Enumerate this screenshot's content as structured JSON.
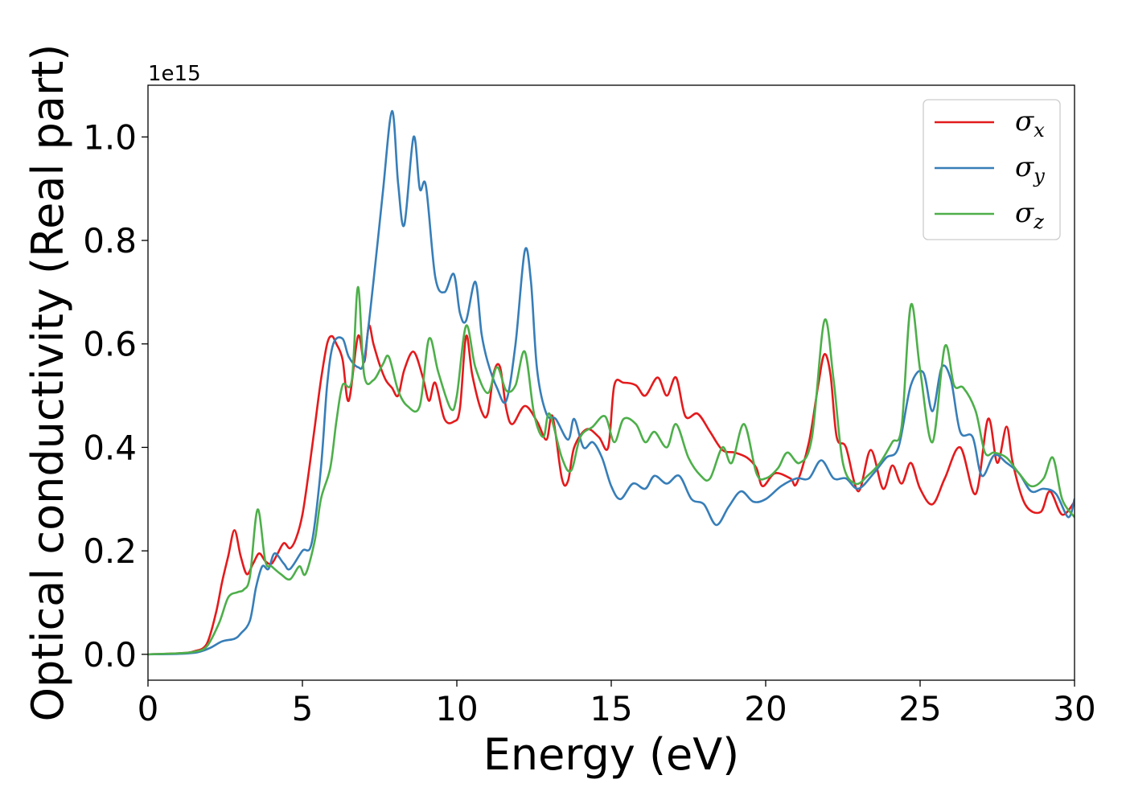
{
  "chart_data": {
    "type": "line",
    "xlabel": "Energy (eV)",
    "ylabel": "Optical conductivity (Real part)",
    "y_offset_text": "1e15",
    "xlim": [
      0,
      30
    ],
    "ylim": [
      -0.05,
      1.1
    ],
    "y_scale_factor": 1000000000000000.0,
    "xticks": [
      0,
      5,
      10,
      15,
      20,
      25,
      30
    ],
    "yticks": [
      0.0,
      0.2,
      0.4,
      0.6,
      0.8,
      1.0
    ],
    "xtick_labels": [
      "0",
      "5",
      "10",
      "15",
      "20",
      "25",
      "30"
    ],
    "ytick_labels": [
      "0.0",
      "0.2",
      "0.4",
      "0.6",
      "0.8",
      "1.0"
    ],
    "grid": false,
    "legend": "top-right",
    "series": [
      {
        "name": "σ_x",
        "symbol": "σ",
        "subscript": "x",
        "color": "#e41a1c",
        "points": [
          [
            0,
            0
          ],
          [
            1.0,
            0.002
          ],
          [
            1.5,
            0.006
          ],
          [
            1.9,
            0.02
          ],
          [
            2.2,
            0.08
          ],
          [
            2.4,
            0.14
          ],
          [
            2.6,
            0.19
          ],
          [
            2.8,
            0.24
          ],
          [
            3.0,
            0.19
          ],
          [
            3.2,
            0.155
          ],
          [
            3.4,
            0.175
          ],
          [
            3.6,
            0.195
          ],
          [
            3.8,
            0.18
          ],
          [
            4.0,
            0.175
          ],
          [
            4.2,
            0.195
          ],
          [
            4.4,
            0.215
          ],
          [
            4.6,
            0.205
          ],
          [
            4.8,
            0.225
          ],
          [
            5.0,
            0.27
          ],
          [
            5.2,
            0.35
          ],
          [
            5.4,
            0.44
          ],
          [
            5.6,
            0.53
          ],
          [
            5.8,
            0.6
          ],
          [
            5.95,
            0.615
          ],
          [
            6.1,
            0.6
          ],
          [
            6.3,
            0.57
          ],
          [
            6.5,
            0.49
          ],
          [
            6.8,
            0.615
          ],
          [
            7.0,
            0.565
          ],
          [
            7.15,
            0.635
          ],
          [
            7.3,
            0.6
          ],
          [
            7.5,
            0.56
          ],
          [
            7.7,
            0.53
          ],
          [
            7.9,
            0.515
          ],
          [
            8.1,
            0.5
          ],
          [
            8.3,
            0.55
          ],
          [
            8.6,
            0.585
          ],
          [
            8.9,
            0.535
          ],
          [
            9.1,
            0.49
          ],
          [
            9.3,
            0.525
          ],
          [
            9.6,
            0.455
          ],
          [
            9.9,
            0.45
          ],
          [
            10.1,
            0.475
          ],
          [
            10.3,
            0.615
          ],
          [
            10.5,
            0.54
          ],
          [
            10.8,
            0.47
          ],
          [
            11.0,
            0.465
          ],
          [
            11.2,
            0.545
          ],
          [
            11.4,
            0.555
          ],
          [
            11.6,
            0.475
          ],
          [
            11.8,
            0.445
          ],
          [
            12.2,
            0.48
          ],
          [
            12.6,
            0.45
          ],
          [
            12.9,
            0.415
          ],
          [
            13.1,
            0.46
          ],
          [
            13.4,
            0.34
          ],
          [
            13.6,
            0.335
          ],
          [
            13.8,
            0.4
          ],
          [
            14.2,
            0.435
          ],
          [
            14.6,
            0.42
          ],
          [
            14.9,
            0.4
          ],
          [
            15.1,
            0.52
          ],
          [
            15.4,
            0.525
          ],
          [
            15.8,
            0.52
          ],
          [
            16.1,
            0.5
          ],
          [
            16.5,
            0.535
          ],
          [
            16.8,
            0.5
          ],
          [
            17.1,
            0.535
          ],
          [
            17.4,
            0.46
          ],
          [
            17.8,
            0.465
          ],
          [
            18.2,
            0.43
          ],
          [
            18.6,
            0.395
          ],
          [
            19.0,
            0.39
          ],
          [
            19.4,
            0.38
          ],
          [
            19.7,
            0.36
          ],
          [
            19.9,
            0.325
          ],
          [
            20.3,
            0.35
          ],
          [
            20.8,
            0.34
          ],
          [
            21.0,
            0.33
          ],
          [
            21.4,
            0.41
          ],
          [
            21.7,
            0.52
          ],
          [
            21.9,
            0.58
          ],
          [
            22.1,
            0.54
          ],
          [
            22.3,
            0.42
          ],
          [
            22.6,
            0.4
          ],
          [
            23.0,
            0.315
          ],
          [
            23.4,
            0.395
          ],
          [
            23.8,
            0.32
          ],
          [
            24.1,
            0.365
          ],
          [
            24.4,
            0.33
          ],
          [
            24.7,
            0.37
          ],
          [
            25.0,
            0.32
          ],
          [
            25.4,
            0.29
          ],
          [
            25.8,
            0.34
          ],
          [
            26.3,
            0.4
          ],
          [
            26.8,
            0.31
          ],
          [
            27.2,
            0.455
          ],
          [
            27.5,
            0.37
          ],
          [
            27.8,
            0.44
          ],
          [
            28.0,
            0.37
          ],
          [
            28.4,
            0.29
          ],
          [
            28.9,
            0.275
          ],
          [
            29.2,
            0.315
          ],
          [
            29.6,
            0.27
          ],
          [
            30.0,
            0.295
          ]
        ]
      },
      {
        "name": "σ_y",
        "symbol": "σ",
        "subscript": "y",
        "color": "#377eb8",
        "points": [
          [
            0,
            0
          ],
          [
            1.0,
            0.001
          ],
          [
            1.6,
            0.004
          ],
          [
            2.0,
            0.012
          ],
          [
            2.4,
            0.025
          ],
          [
            2.8,
            0.03
          ],
          [
            3.0,
            0.04
          ],
          [
            3.3,
            0.065
          ],
          [
            3.5,
            0.13
          ],
          [
            3.7,
            0.17
          ],
          [
            3.9,
            0.165
          ],
          [
            4.1,
            0.195
          ],
          [
            4.4,
            0.175
          ],
          [
            4.6,
            0.165
          ],
          [
            5.0,
            0.2
          ],
          [
            5.3,
            0.215
          ],
          [
            5.6,
            0.36
          ],
          [
            5.8,
            0.52
          ],
          [
            6.0,
            0.6
          ],
          [
            6.3,
            0.61
          ],
          [
            6.5,
            0.575
          ],
          [
            6.8,
            0.555
          ],
          [
            7.0,
            0.57
          ],
          [
            7.3,
            0.72
          ],
          [
            7.6,
            0.89
          ],
          [
            7.9,
            1.05
          ],
          [
            8.1,
            0.91
          ],
          [
            8.3,
            0.83
          ],
          [
            8.6,
            1.0
          ],
          [
            8.8,
            0.9
          ],
          [
            9.0,
            0.905
          ],
          [
            9.3,
            0.73
          ],
          [
            9.6,
            0.7
          ],
          [
            9.9,
            0.735
          ],
          [
            10.1,
            0.66
          ],
          [
            10.3,
            0.645
          ],
          [
            10.6,
            0.72
          ],
          [
            10.8,
            0.62
          ],
          [
            11.0,
            0.565
          ],
          [
            11.3,
            0.515
          ],
          [
            11.6,
            0.49
          ],
          [
            11.9,
            0.6
          ],
          [
            12.2,
            0.78
          ],
          [
            12.4,
            0.72
          ],
          [
            12.6,
            0.55
          ],
          [
            12.9,
            0.465
          ],
          [
            13.2,
            0.455
          ],
          [
            13.6,
            0.415
          ],
          [
            13.8,
            0.455
          ],
          [
            14.1,
            0.4
          ],
          [
            14.4,
            0.41
          ],
          [
            14.7,
            0.38
          ],
          [
            15.0,
            0.325
          ],
          [
            15.3,
            0.3
          ],
          [
            15.7,
            0.33
          ],
          [
            16.1,
            0.32
          ],
          [
            16.4,
            0.345
          ],
          [
            16.8,
            0.33
          ],
          [
            17.2,
            0.345
          ],
          [
            17.6,
            0.3
          ],
          [
            18.0,
            0.29
          ],
          [
            18.4,
            0.25
          ],
          [
            18.8,
            0.285
          ],
          [
            19.2,
            0.315
          ],
          [
            19.6,
            0.295
          ],
          [
            20.0,
            0.3
          ],
          [
            20.5,
            0.325
          ],
          [
            21.0,
            0.34
          ],
          [
            21.4,
            0.34
          ],
          [
            21.8,
            0.375
          ],
          [
            22.2,
            0.34
          ],
          [
            22.6,
            0.34
          ],
          [
            23.0,
            0.32
          ],
          [
            23.5,
            0.35
          ],
          [
            23.9,
            0.38
          ],
          [
            24.3,
            0.4
          ],
          [
            24.7,
            0.52
          ],
          [
            25.1,
            0.545
          ],
          [
            25.4,
            0.47
          ],
          [
            25.7,
            0.555
          ],
          [
            26.0,
            0.53
          ],
          [
            26.3,
            0.43
          ],
          [
            26.7,
            0.42
          ],
          [
            27.0,
            0.345
          ],
          [
            27.4,
            0.385
          ],
          [
            27.8,
            0.37
          ],
          [
            28.2,
            0.35
          ],
          [
            28.6,
            0.315
          ],
          [
            29.0,
            0.32
          ],
          [
            29.4,
            0.31
          ],
          [
            29.8,
            0.265
          ],
          [
            30.0,
            0.3
          ]
        ]
      },
      {
        "name": "σ_z",
        "symbol": "σ",
        "subscript": "z",
        "color": "#4daf4a",
        "points": [
          [
            0,
            0
          ],
          [
            1.0,
            0.002
          ],
          [
            1.5,
            0.005
          ],
          [
            1.9,
            0.015
          ],
          [
            2.3,
            0.06
          ],
          [
            2.6,
            0.11
          ],
          [
            2.9,
            0.12
          ],
          [
            3.1,
            0.125
          ],
          [
            3.3,
            0.15
          ],
          [
            3.55,
            0.28
          ],
          [
            3.8,
            0.18
          ],
          [
            4.0,
            0.17
          ],
          [
            4.3,
            0.155
          ],
          [
            4.6,
            0.145
          ],
          [
            4.9,
            0.17
          ],
          [
            5.1,
            0.155
          ],
          [
            5.4,
            0.22
          ],
          [
            5.6,
            0.3
          ],
          [
            5.9,
            0.36
          ],
          [
            6.1,
            0.45
          ],
          [
            6.3,
            0.52
          ],
          [
            6.6,
            0.53
          ],
          [
            6.8,
            0.71
          ],
          [
            7.0,
            0.54
          ],
          [
            7.3,
            0.53
          ],
          [
            7.6,
            0.56
          ],
          [
            7.8,
            0.575
          ],
          [
            8.1,
            0.51
          ],
          [
            8.4,
            0.48
          ],
          [
            8.8,
            0.48
          ],
          [
            9.1,
            0.61
          ],
          [
            9.4,
            0.545
          ],
          [
            9.8,
            0.475
          ],
          [
            10.0,
            0.5
          ],
          [
            10.3,
            0.635
          ],
          [
            10.6,
            0.555
          ],
          [
            11.0,
            0.505
          ],
          [
            11.3,
            0.555
          ],
          [
            11.6,
            0.51
          ],
          [
            11.9,
            0.52
          ],
          [
            12.2,
            0.585
          ],
          [
            12.5,
            0.465
          ],
          [
            12.8,
            0.42
          ],
          [
            13.0,
            0.465
          ],
          [
            13.4,
            0.38
          ],
          [
            13.7,
            0.355
          ],
          [
            14.0,
            0.42
          ],
          [
            14.4,
            0.44
          ],
          [
            14.8,
            0.46
          ],
          [
            15.1,
            0.41
          ],
          [
            15.4,
            0.455
          ],
          [
            15.8,
            0.445
          ],
          [
            16.1,
            0.41
          ],
          [
            16.4,
            0.43
          ],
          [
            16.8,
            0.4
          ],
          [
            17.1,
            0.445
          ],
          [
            17.5,
            0.38
          ],
          [
            17.9,
            0.345
          ],
          [
            18.2,
            0.34
          ],
          [
            18.6,
            0.4
          ],
          [
            18.9,
            0.37
          ],
          [
            19.3,
            0.445
          ],
          [
            19.7,
            0.35
          ],
          [
            20.0,
            0.34
          ],
          [
            20.4,
            0.36
          ],
          [
            20.7,
            0.39
          ],
          [
            21.1,
            0.37
          ],
          [
            21.5,
            0.42
          ],
          [
            21.9,
            0.645
          ],
          [
            22.2,
            0.53
          ],
          [
            22.5,
            0.37
          ],
          [
            22.9,
            0.33
          ],
          [
            23.3,
            0.345
          ],
          [
            23.7,
            0.37
          ],
          [
            24.1,
            0.41
          ],
          [
            24.4,
            0.44
          ],
          [
            24.7,
            0.675
          ],
          [
            25.0,
            0.55
          ],
          [
            25.4,
            0.41
          ],
          [
            25.8,
            0.595
          ],
          [
            26.1,
            0.52
          ],
          [
            26.4,
            0.515
          ],
          [
            26.8,
            0.47
          ],
          [
            27.1,
            0.39
          ],
          [
            27.4,
            0.39
          ],
          [
            27.8,
            0.38
          ],
          [
            28.2,
            0.35
          ],
          [
            28.6,
            0.325
          ],
          [
            29.0,
            0.34
          ],
          [
            29.3,
            0.38
          ],
          [
            29.6,
            0.3
          ],
          [
            30.0,
            0.265
          ]
        ]
      }
    ]
  }
}
